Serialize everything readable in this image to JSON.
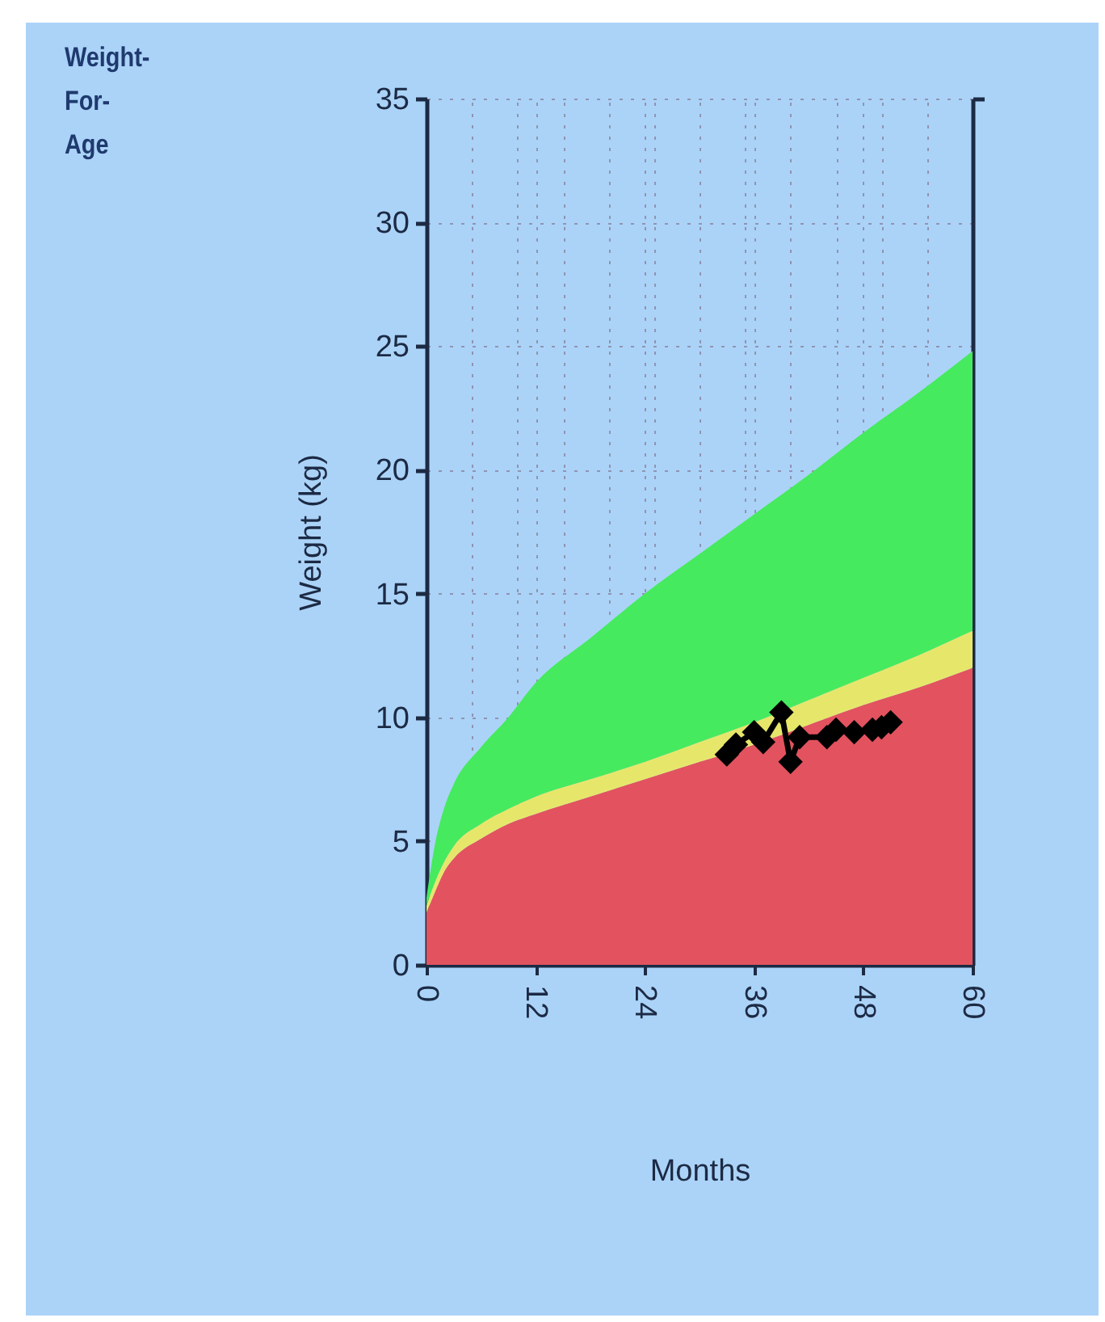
{
  "chart_data": {
    "type": "area",
    "title": "Weight-For-Age",
    "xlabel": "Months",
    "ylabel": "Weight (kg)",
    "x": [
      0,
      1,
      2,
      3,
      6,
      9,
      12,
      18,
      24,
      30,
      36,
      42,
      48,
      54,
      60
    ],
    "stacked": true,
    "series": [
      {
        "color": "#e2535f",
        "values": [
          2.1,
          3.0,
          3.8,
          4.3,
          5.1,
          5.7,
          6.1,
          6.8,
          7.5,
          8.2,
          8.9,
          9.7,
          10.5,
          11.2,
          12.0
        ]
      },
      {
        "color": "#e6e76a",
        "values": [
          0.3,
          0.4,
          0.4,
          0.5,
          0.6,
          0.6,
          0.7,
          0.7,
          0.7,
          0.8,
          0.9,
          1.0,
          1.1,
          1.3,
          1.5
        ]
      },
      {
        "color": "#46ea5e",
        "values": [
          0.3,
          1.6,
          2.2,
          2.5,
          3.1,
          3.7,
          4.6,
          5.7,
          6.8,
          7.6,
          8.4,
          9.1,
          9.9,
          10.6,
          11.3
        ]
      },
      {
        "type": "line",
        "marker": "diamond",
        "color": "#000000",
        "x": [
          33,
          34,
          36,
          37,
          39,
          40,
          41,
          44,
          45,
          47,
          49,
          50,
          51
        ],
        "values": [
          8.5,
          8.9,
          9.4,
          9.0,
          10.2,
          8.2,
          9.2,
          9.2,
          9.5,
          9.4,
          9.5,
          9.6,
          9.8
        ]
      }
    ],
    "line_style": "solid",
    "xlim": [
      0,
      60
    ],
    "xticks": [
      0,
      {
        "value": 5,
        "label": null
      },
      {
        "value": 10,
        "label": null
      },
      12,
      {
        "value": 15,
        "label": null
      },
      {
        "value": 20,
        "label": null
      },
      24,
      {
        "value": 25,
        "label": null
      },
      {
        "value": 30,
        "label": null
      },
      {
        "value": 35,
        "label": null
      },
      36,
      {
        "value": 40,
        "label": null
      },
      {
        "value": 45,
        "label": null
      },
      48,
      {
        "value": 50,
        "label": null
      },
      {
        "value": 55,
        "label": null
      },
      60
    ],
    "ylim": [
      0,
      35
    ],
    "yticks": [
      0,
      5,
      10,
      15,
      20,
      25,
      30,
      35
    ],
    "grid": true
  }
}
